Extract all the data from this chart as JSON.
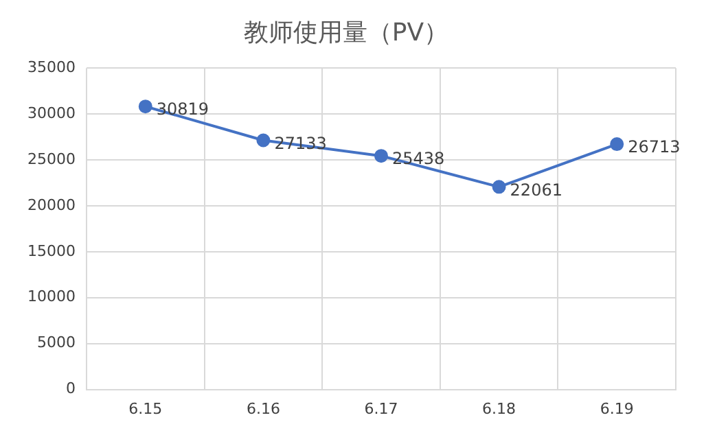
{
  "chart_data": {
    "type": "line",
    "title": "教师使用量（PV）",
    "categories": [
      "6.15",
      "6.16",
      "6.17",
      "6.18",
      "6.19"
    ],
    "values": [
      30819,
      27133,
      25438,
      22061,
      26713
    ],
    "color": "#4472c4",
    "ylim": [
      0,
      35000
    ],
    "yticks": [
      0,
      5000,
      10000,
      15000,
      20000,
      25000,
      30000,
      35000
    ],
    "grid": true,
    "marker": "circle",
    "line_style": "solid",
    "data_labels": true,
    "legend": false
  }
}
